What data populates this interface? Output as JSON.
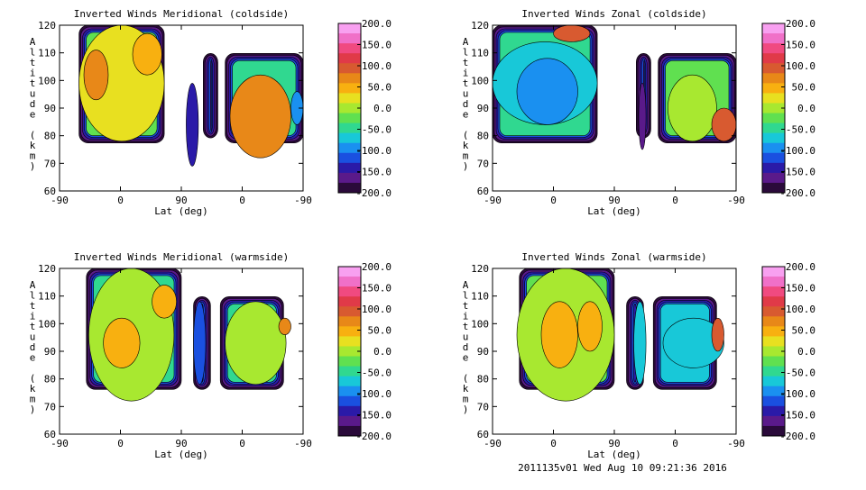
{
  "chart_data": [
    {
      "type": "contour",
      "title": "Inverted Winds Meridional (coldside)",
      "xlabel": "Lat (deg)",
      "ylabel": "Altitude (km)",
      "xticks": [
        "-90",
        "0",
        "90",
        "0",
        "-90"
      ],
      "yticks": [
        "60",
        "70",
        "80",
        "90",
        "100",
        "110",
        "120"
      ],
      "ylim": [
        60,
        120
      ],
      "colorbar_ticks": [
        "200.0",
        "150.0",
        "100.0",
        "50.0",
        "0.0",
        "-50.0",
        "-100.0",
        "-150.0",
        "-200.0"
      ],
      "colorbar_range": [
        -200,
        200
      ]
    },
    {
      "type": "contour",
      "title": "Inverted Winds Zonal (coldside)",
      "xlabel": "Lat (deg)",
      "ylabel": "Altitude (km)",
      "xticks": [
        "-90",
        "0",
        "90",
        "0",
        "-90"
      ],
      "yticks": [
        "60",
        "70",
        "80",
        "90",
        "100",
        "110",
        "120"
      ],
      "ylim": [
        60,
        120
      ],
      "colorbar_ticks": [
        "200.0",
        "150.0",
        "100.0",
        "50.0",
        "0.0",
        "-50.0",
        "-100.0",
        "-150.0",
        "-200.0"
      ],
      "colorbar_range": [
        -200,
        200
      ]
    },
    {
      "type": "contour",
      "title": "Inverted Winds Meridional (warmside)",
      "xlabel": "Lat (deg)",
      "ylabel": "Altitude (km)",
      "xticks": [
        "-90",
        "0",
        "90",
        "0",
        "-90"
      ],
      "yticks": [
        "60",
        "70",
        "80",
        "90",
        "100",
        "110",
        "120"
      ],
      "ylim": [
        60,
        120
      ],
      "colorbar_ticks": [
        "200.0",
        "150.0",
        "100.0",
        "50.0",
        "0.0",
        "-50.0",
        "-100.0",
        "-150.0",
        "-200.0"
      ],
      "colorbar_range": [
        -200,
        200
      ]
    },
    {
      "type": "contour",
      "title": "Inverted Winds Zonal (warmside)",
      "xlabel": "Lat (deg)",
      "ylabel": "Altitude (km)",
      "xticks": [
        "-90",
        "0",
        "90",
        "0",
        "-90"
      ],
      "yticks": [
        "60",
        "70",
        "80",
        "90",
        "100",
        "110",
        "120"
      ],
      "ylim": [
        60,
        120
      ],
      "colorbar_ticks": [
        "200.0",
        "150.0",
        "100.0",
        "50.0",
        "0.0",
        "-50.0",
        "-100.0",
        "-150.0",
        "-200.0"
      ],
      "colorbar_range": [
        -200,
        200
      ]
    }
  ],
  "colorbar_colors": [
    "#2a0a3a",
    "#5a1a8a",
    "#2a1aa8",
    "#1a50e0",
    "#1a90f0",
    "#18c8d8",
    "#30d890",
    "#60e050",
    "#a8e830",
    "#e8e020",
    "#f8b010",
    "#e88818",
    "#d85a30",
    "#e03a48",
    "#f04a80",
    "#f070c8",
    "#f8a0f0"
  ],
  "footer": "2011135v01 Wed Aug 10 09:21:36 2016"
}
